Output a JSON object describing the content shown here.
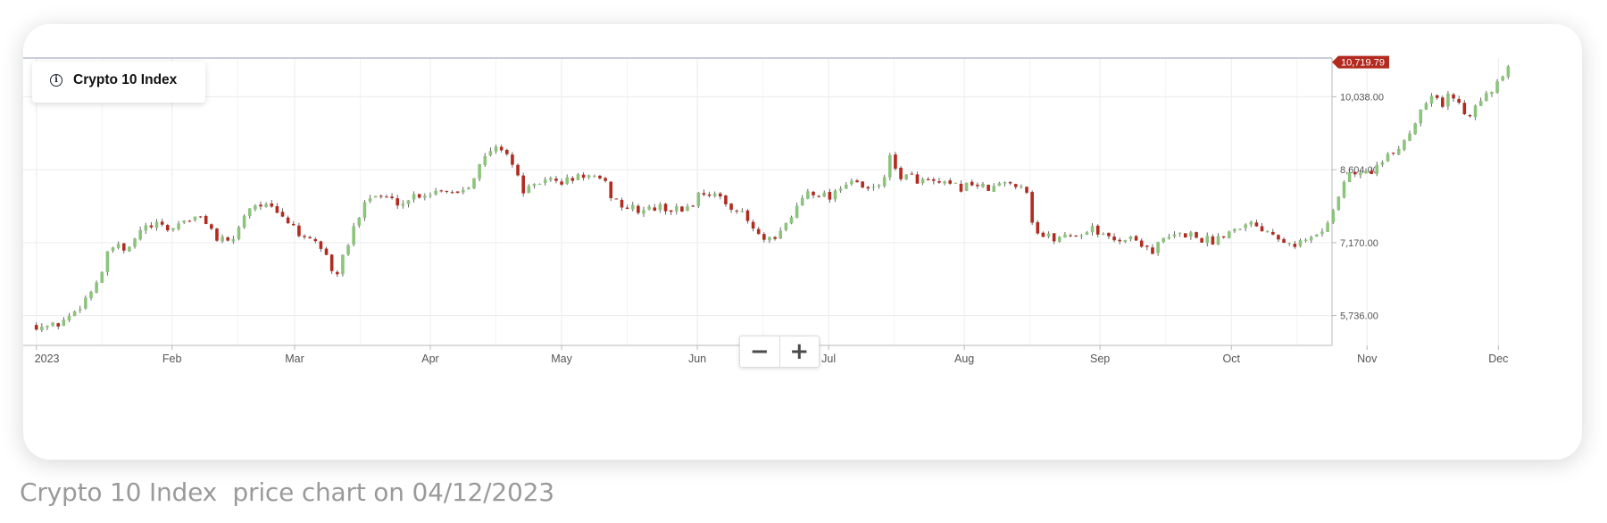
{
  "caption": "Crypto 10 Index  price chart on 04/12/2023",
  "icons": {
    "info": "info-icon",
    "zoom_out": "minus-icon",
    "zoom_in": "plus-icon"
  },
  "zoom": {
    "out_label": "−",
    "in_label": "+"
  },
  "chart_data": {
    "type": "candlestick",
    "title": "Crypto 10 Index",
    "x_ticks": [
      "2023",
      "Feb",
      "Mar",
      "Apr",
      "May",
      "Jun",
      "Jul",
      "Aug",
      "Sep",
      "Oct",
      "Nov",
      "Dec"
    ],
    "y_ticks": [
      5736,
      7170,
      8604,
      10038
    ],
    "y_tick_labels": [
      "5,736.00",
      "7,170.00",
      "8,604.00",
      "10,038.00"
    ],
    "ylim": [
      5150,
      10800
    ],
    "last_price": 10719.79,
    "last_price_label": "10,719.79",
    "grid": true,
    "colors": {
      "up": "#8cc47c",
      "down": "#b32a1f",
      "last_price": "#b32a1f",
      "grid": "#ececec",
      "axis": "#b8b8b8"
    },
    "close_path": [
      [
        "2023-01-01",
        5550
      ],
      [
        "2023-01-05",
        5520
      ],
      [
        "2023-01-09",
        5750
      ],
      [
        "2023-01-13",
        6150
      ],
      [
        "2023-01-16",
        6600
      ],
      [
        "2023-01-18",
        7100
      ],
      [
        "2023-01-22",
        7000
      ],
      [
        "2023-01-25",
        7450
      ],
      [
        "2023-01-29",
        7500
      ],
      [
        "2023-02-01",
        7420
      ],
      [
        "2023-02-03",
        7600
      ],
      [
        "2023-02-06",
        7650
      ],
      [
        "2023-02-09",
        7600
      ],
      [
        "2023-02-11",
        7250
      ],
      [
        "2023-02-14",
        7150
      ],
      [
        "2023-02-16",
        7400
      ],
      [
        "2023-02-18",
        7850
      ],
      [
        "2023-02-21",
        7950
      ],
      [
        "2023-02-24",
        7800
      ],
      [
        "2023-02-27",
        7600
      ],
      [
        "2023-03-01",
        7500
      ],
      [
        "2023-03-03",
        7200
      ],
      [
        "2023-03-06",
        7150
      ],
      [
        "2023-03-08",
        7000
      ],
      [
        "2023-03-10",
        6450
      ],
      [
        "2023-03-12",
        6850
      ],
      [
        "2023-03-15",
        7550
      ],
      [
        "2023-03-17",
        8050
      ],
      [
        "2023-03-20",
        8100
      ],
      [
        "2023-03-23",
        8000
      ],
      [
        "2023-03-26",
        7950
      ],
      [
        "2023-03-28",
        8100
      ],
      [
        "2023-04-01",
        8150
      ],
      [
        "2023-04-04",
        8250
      ],
      [
        "2023-04-07",
        8150
      ],
      [
        "2023-04-10",
        8350
      ],
      [
        "2023-04-12",
        8650
      ],
      [
        "2023-04-15",
        9000
      ],
      [
        "2023-04-18",
        9050
      ],
      [
        "2023-04-20",
        8650
      ],
      [
        "2023-04-22",
        8200
      ],
      [
        "2023-04-25",
        8250
      ],
      [
        "2023-04-27",
        8450
      ],
      [
        "2023-04-30",
        8350
      ],
      [
        "2023-05-03",
        8400
      ],
      [
        "2023-05-06",
        8500
      ],
      [
        "2023-05-08",
        8450
      ],
      [
        "2023-05-11",
        8300
      ],
      [
        "2023-05-13",
        8000
      ],
      [
        "2023-05-16",
        7850
      ],
      [
        "2023-05-19",
        7800
      ],
      [
        "2023-05-22",
        7850
      ],
      [
        "2023-05-25",
        7850
      ],
      [
        "2023-05-28",
        7800
      ],
      [
        "2023-05-31",
        7950
      ],
      [
        "2023-06-02",
        8200
      ],
      [
        "2023-06-05",
        8100
      ],
      [
        "2023-06-07",
        7950
      ],
      [
        "2023-06-09",
        7900
      ],
      [
        "2023-06-12",
        7650
      ],
      [
        "2023-06-14",
        7400
      ],
      [
        "2023-06-16",
        7200
      ],
      [
        "2023-06-19",
        7200
      ],
      [
        "2023-06-21",
        7500
      ],
      [
        "2023-06-24",
        7900
      ],
      [
        "2023-06-26",
        8200
      ],
      [
        "2023-06-29",
        8150
      ],
      [
        "2023-07-01",
        8050
      ],
      [
        "2023-07-03",
        8250
      ],
      [
        "2023-07-06",
        8400
      ],
      [
        "2023-07-08",
        8250
      ],
      [
        "2023-07-11",
        8200
      ],
      [
        "2023-07-13",
        8350
      ],
      [
        "2023-07-15",
        8800
      ],
      [
        "2023-07-17",
        8500
      ],
      [
        "2023-07-20",
        8450
      ],
      [
        "2023-07-24",
        8350
      ],
      [
        "2023-07-27",
        8300
      ],
      [
        "2023-07-31",
        8250
      ],
      [
        "2023-08-03",
        8350
      ],
      [
        "2023-08-06",
        8200
      ],
      [
        "2023-08-09",
        8300
      ],
      [
        "2023-08-12",
        8350
      ],
      [
        "2023-08-15",
        8300
      ],
      [
        "2023-08-17",
        7400
      ],
      [
        "2023-08-19",
        7300
      ],
      [
        "2023-08-22",
        7250
      ],
      [
        "2023-08-25",
        7350
      ],
      [
        "2023-08-28",
        7300
      ],
      [
        "2023-08-30",
        7550
      ],
      [
        "2023-09-01",
        7300
      ],
      [
        "2023-09-04",
        7250
      ],
      [
        "2023-09-08",
        7250
      ],
      [
        "2023-09-11",
        7150
      ],
      [
        "2023-09-13",
        7000
      ],
      [
        "2023-09-15",
        7200
      ],
      [
        "2023-09-18",
        7300
      ],
      [
        "2023-09-21",
        7350
      ],
      [
        "2023-09-24",
        7250
      ],
      [
        "2023-09-27",
        7200
      ],
      [
        "2023-09-29",
        7350
      ],
      [
        "2023-10-02",
        7450
      ],
      [
        "2023-10-04",
        7600
      ],
      [
        "2023-10-07",
        7500
      ],
      [
        "2023-10-10",
        7400
      ],
      [
        "2023-10-13",
        7250
      ],
      [
        "2023-10-16",
        7150
      ],
      [
        "2023-10-19",
        7250
      ],
      [
        "2023-10-22",
        7400
      ],
      [
        "2023-10-24",
        7800
      ],
      [
        "2023-10-26",
        8200
      ],
      [
        "2023-10-28",
        8550
      ],
      [
        "2023-10-31",
        8500
      ],
      [
        "2023-11-03",
        8650
      ],
      [
        "2023-11-06",
        8850
      ],
      [
        "2023-11-09",
        9100
      ],
      [
        "2023-11-12",
        9550
      ],
      [
        "2023-11-14",
        9950
      ],
      [
        "2023-11-16",
        10150
      ],
      [
        "2023-11-18",
        9850
      ],
      [
        "2023-11-20",
        10100
      ],
      [
        "2023-11-22",
        9900
      ],
      [
        "2023-11-24",
        9650
      ],
      [
        "2023-11-26",
        10000
      ],
      [
        "2023-11-28",
        10050
      ],
      [
        "2023-11-30",
        10150
      ],
      [
        "2023-12-02",
        10450
      ],
      [
        "2023-12-04",
        10719.79
      ]
    ]
  }
}
